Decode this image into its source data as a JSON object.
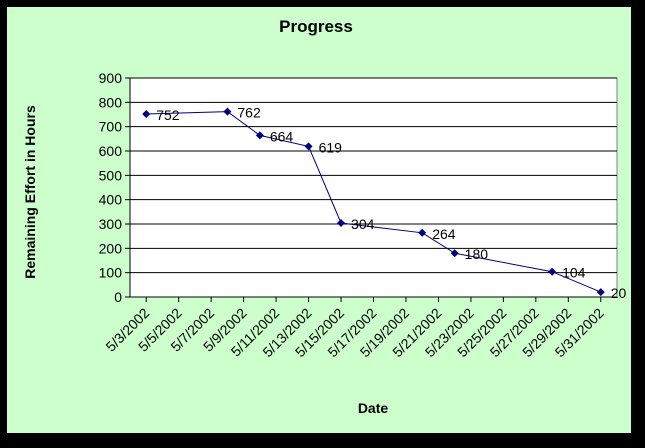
{
  "chart_data": {
    "type": "line",
    "title": "Progress",
    "xlabel": "Date",
    "ylabel": "Remaining Effort in Hours",
    "ylim": [
      0,
      900
    ],
    "ytick_step": 100,
    "x_tick_labels": [
      "5/3/2002",
      "5/5/2002",
      "5/7/2002",
      "5/9/2002",
      "5/11/2002",
      "5/13/2002",
      "5/15/2002",
      "5/17/2002",
      "5/19/2002",
      "5/21/2002",
      "5/23/2002",
      "5/25/2002",
      "5/27/2002",
      "5/29/2002",
      "5/31/2002"
    ],
    "x_range": [
      "2002-05-02",
      "2002-06-01"
    ],
    "series": [
      {
        "points": [
          {
            "x": "2002-05-03",
            "y": 752,
            "label": "752"
          },
          {
            "x": "2002-05-08",
            "y": 762,
            "label": "762"
          },
          {
            "x": "2002-05-10",
            "y": 664,
            "label": "664"
          },
          {
            "x": "2002-05-13",
            "y": 619,
            "label": "619"
          },
          {
            "x": "2002-05-15",
            "y": 304,
            "label": "304"
          },
          {
            "x": "2002-05-20",
            "y": 264,
            "label": "264"
          },
          {
            "x": "2002-05-22",
            "y": 180,
            "label": "180"
          },
          {
            "x": "2002-05-28",
            "y": 104,
            "label": "104"
          },
          {
            "x": "2002-05-31",
            "y": 20,
            "label": "20"
          }
        ],
        "color": "#000080"
      }
    ],
    "grid": true,
    "legend": "none",
    "plot_background": "#ffffff",
    "chart_background": "#ccffcc"
  }
}
